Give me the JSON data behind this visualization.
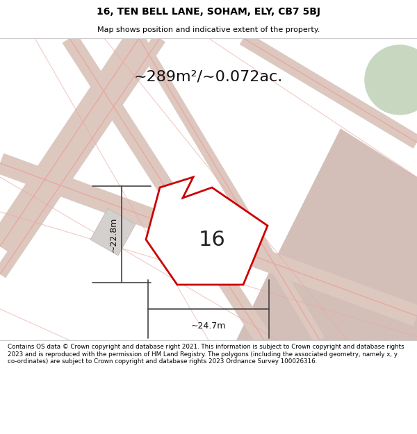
{
  "title_line1": "16, TEN BELL LANE, SOHAM, ELY, CB7 5BJ",
  "title_line2": "Map shows position and indicative extent of the property.",
  "area_label": "~289m²/~0.072ac.",
  "number_label": "16",
  "dim_vertical": "~22.8m",
  "dim_horizontal": "~24.7m",
  "footer_text": "Contains OS data © Crown copyright and database right 2021. This information is subject to Crown copyright and database rights 2023 and is reproduced with the permission of HM Land Registry. The polygons (including the associated geometry, namely x, y co-ordinates) are subject to Crown copyright and database rights 2023 Ordnance Survey 100026316.",
  "map_bg": "#f2eeec",
  "property_fill": "#ffffff",
  "property_edge": "#cc0000",
  "building_fill": "#d4d0ce",
  "dim_line_color": "#444444",
  "title_bg": "#ffffff",
  "footer_bg": "#ffffff",
  "pink_line_color": "#e8a8a0",
  "road_fill": "#ddc8c0",
  "tan_fill": "#d4bfb8",
  "green_fill": "#c8d8c0"
}
